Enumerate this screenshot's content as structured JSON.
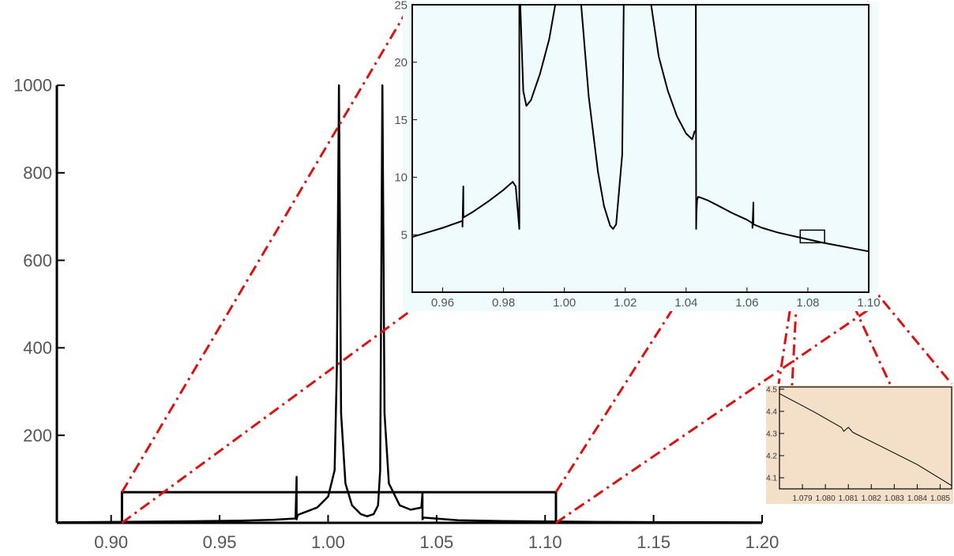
{
  "chart_data": [
    {
      "id": "main",
      "type": "line",
      "xlim": [
        0.875,
        1.2
      ],
      "ylim": [
        0,
        1000
      ],
      "x_ticks": [
        "0.90",
        "0.95",
        "1.00",
        "1.05",
        "1.10",
        "1.15",
        "1.20"
      ],
      "y_ticks": [
        "200",
        "400",
        "600",
        "800",
        "1000"
      ],
      "grid": false,
      "series": [
        {
          "x": [
            0.875,
            0.9,
            0.93,
            0.96,
            0.975,
            0.985,
            0.9855,
            0.9855,
            0.986,
            0.995,
            1.0,
            1.003,
            1.004,
            1.005,
            1.006,
            1.008,
            1.011,
            1.015,
            1.018,
            1.021,
            1.023,
            1.024,
            1.025,
            1.026,
            1.028,
            1.033,
            1.038,
            1.043,
            1.0435,
            1.0435,
            1.044,
            1.06,
            1.08,
            1.1,
            1.13,
            1.16,
            1.2
          ],
          "y": [
            1,
            2,
            3,
            5,
            7,
            10,
            105,
            8,
            18,
            35,
            60,
            120,
            350,
            1000,
            250,
            90,
            40,
            20,
            15,
            20,
            40,
            120,
            1000,
            250,
            90,
            40,
            30,
            35,
            70,
            8,
            12,
            6,
            4,
            3,
            2,
            1.5,
            1
          ]
        }
      ],
      "zoom_box": {
        "x": [
          0.905,
          1.105
        ],
        "y": [
          0,
          70
        ]
      }
    },
    {
      "id": "inset-1",
      "type": "line",
      "background": "#f0fbfd",
      "xlim": [
        0.95,
        1.1
      ],
      "ylim": [
        0,
        25
      ],
      "x_ticks": [
        "0.96",
        "0.98",
        "1.00",
        "1.02",
        "1.04",
        "1.06",
        "1.08",
        "1.10"
      ],
      "y_ticks": [
        "5",
        "10",
        "15",
        "20",
        "25"
      ],
      "series": [
        {
          "x": [
            0.95,
            0.955,
            0.96,
            0.9665,
            0.9665,
            0.9668,
            0.9668,
            0.97,
            0.975,
            0.98,
            0.983,
            0.984,
            0.9852,
            0.9852,
            0.9855
          ],
          "y": [
            4.8,
            5.2,
            5.6,
            6.2,
            5.7,
            9.2,
            6.5,
            7.0,
            7.9,
            8.9,
            9.6,
            9.2,
            5.5,
            25,
            25
          ]
        },
        {
          "x": [
            0.9855,
            0.9865,
            0.9875,
            0.989,
            0.992,
            0.995,
            0.997
          ],
          "y": [
            25,
            17.5,
            16.2,
            16.7,
            19,
            22,
            25
          ]
        },
        {
          "x": [
            1.0055,
            1.008,
            1.011,
            1.013,
            1.015,
            1.016,
            1.017,
            1.019,
            1.0195
          ],
          "y": [
            25,
            17,
            10.5,
            7.5,
            5.8,
            5.5,
            5.9,
            12,
            25
          ]
        },
        {
          "x": [
            1.0285,
            1.031,
            1.034,
            1.037,
            1.04,
            1.042,
            1.0428,
            1.0432,
            1.0432
          ],
          "y": [
            25,
            20.5,
            17.5,
            15.3,
            13.8,
            13.3,
            14,
            14,
            25
          ]
        },
        {
          "x": [
            1.0432,
            1.0433,
            1.0434,
            1.0436,
            1.0438,
            1.044,
            1.045,
            1.047,
            1.05,
            1.055,
            1.06,
            1.0618,
            1.0618,
            1.0621,
            1.0621,
            1.065,
            1.07,
            1.075,
            1.08,
            1.085,
            1.09,
            1.095,
            1.1
          ],
          "y": [
            25,
            5.5,
            7,
            8,
            8.2,
            8.3,
            8.2,
            8.0,
            7.6,
            6.9,
            6.3,
            6.0,
            5.6,
            7.8,
            5.9,
            5.6,
            5.2,
            4.9,
            4.6,
            4.3,
            4.05,
            3.8,
            3.55
          ]
        }
      ],
      "zoom_box": {
        "x": [
          1.0775,
          1.0855
        ],
        "y": [
          4.3,
          5.4
        ]
      }
    },
    {
      "id": "inset-2",
      "type": "line",
      "background": "#f4e0c8",
      "xlim": [
        1.078,
        1.0855
      ],
      "ylim": [
        4.05,
        4.51
      ],
      "x_ticks": [
        "1.079",
        "1.080",
        "1.081",
        "1.082",
        "1.083",
        "1.084",
        "1.085"
      ],
      "y_ticks": [
        "4.1",
        "4.2",
        "4.3",
        "4.4",
        "4.5"
      ],
      "series": [
        {
          "x": [
            1.078,
            1.0795,
            1.0807,
            1.0808,
            1.081,
            1.0812,
            1.0825,
            1.084,
            1.0855
          ],
          "y": [
            4.48,
            4.398,
            4.327,
            4.31,
            4.328,
            4.305,
            4.238,
            4.16,
            4.065
          ]
        }
      ]
    }
  ]
}
